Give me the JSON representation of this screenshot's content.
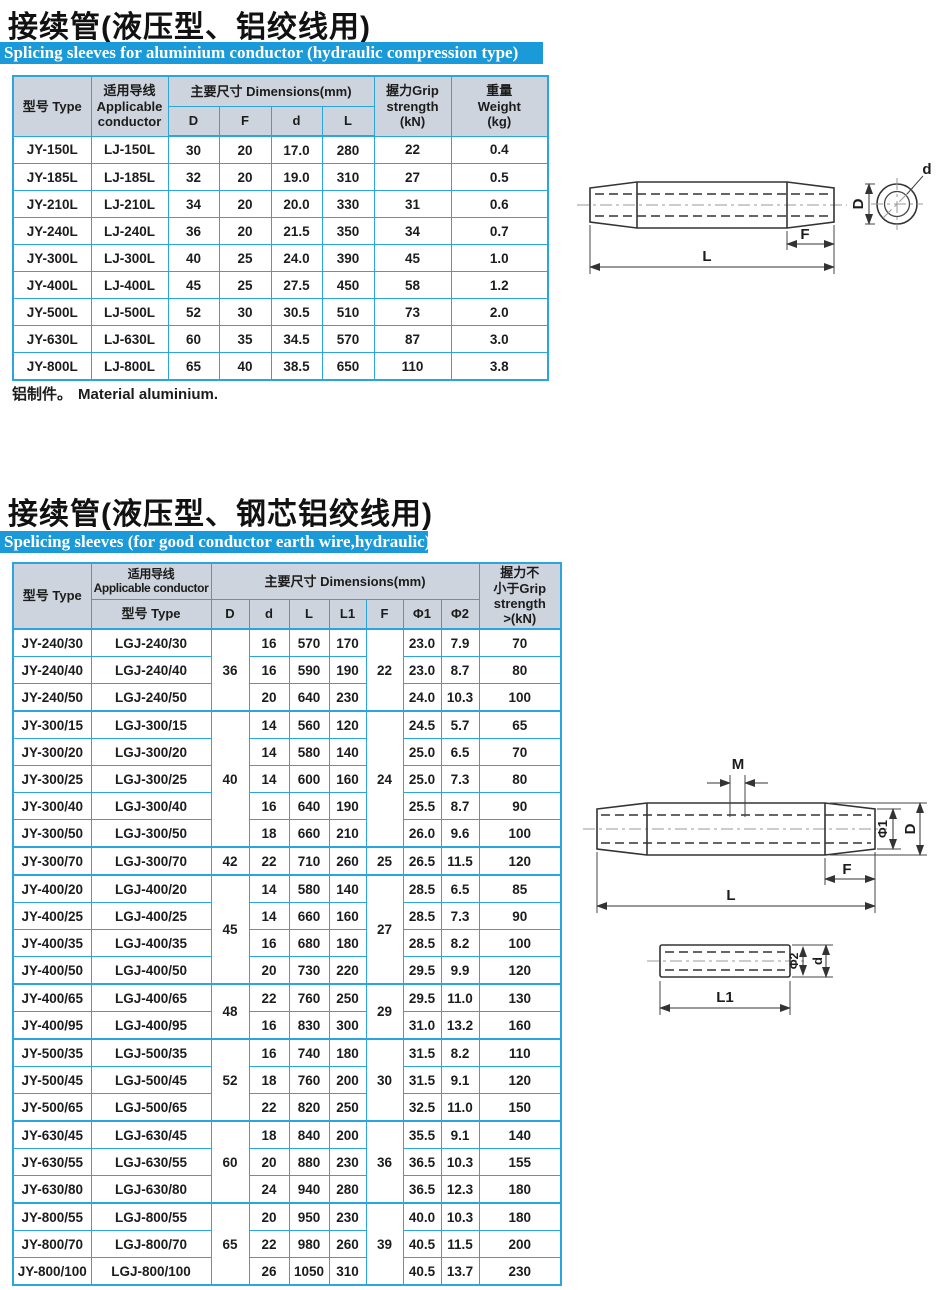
{
  "colors": {
    "banner_bg": "#1b9ad9",
    "table_border": "#2ba4e2",
    "header_bg": "#cdd4dd"
  },
  "section1": {
    "title": "接续管(液压型、铝绞线用)",
    "banner": "Splicing sleeves for aluminium conductor (hydraulic compression type)",
    "note_cn": "铝制件。",
    "note_en": "Material aluminium.",
    "table": {
      "header": {
        "type": "型号 Type",
        "conductor": "适用导线\nApplicable\nconductor",
        "dims": "主要尺寸 Dimensions(mm)",
        "sub": [
          "D",
          "F",
          "d",
          "L"
        ],
        "grip": "握力Grip\nstrength\n(kN)",
        "weight": "重量\nWeight\n(kg)"
      },
      "rows": [
        [
          "JY-150L",
          "LJ-150L",
          "30",
          "20",
          "17.0",
          "280",
          "22",
          "0.4"
        ],
        [
          "JY-185L",
          "LJ-185L",
          "32",
          "20",
          "19.0",
          "310",
          "27",
          "0.5"
        ],
        [
          "JY-210L",
          "LJ-210L",
          "34",
          "20",
          "20.0",
          "330",
          "31",
          "0.6"
        ],
        [
          "JY-240L",
          "LJ-240L",
          "36",
          "20",
          "21.5",
          "350",
          "34",
          "0.7"
        ],
        [
          "JY-300L",
          "LJ-300L",
          "40",
          "25",
          "24.0",
          "390",
          "45",
          "1.0"
        ],
        [
          "JY-400L",
          "LJ-400L",
          "45",
          "25",
          "27.5",
          "450",
          "58",
          "1.2"
        ],
        [
          "JY-500L",
          "LJ-500L",
          "52",
          "30",
          "30.5",
          "510",
          "73",
          "2.0"
        ],
        [
          "JY-630L",
          "LJ-630L",
          "60",
          "35",
          "34.5",
          "570",
          "87",
          "3.0"
        ],
        [
          "JY-800L",
          "LJ-800L",
          "65",
          "40",
          "38.5",
          "650",
          "110",
          "3.8"
        ]
      ]
    },
    "diagram": {
      "L": "L",
      "F": "F",
      "D": "D",
      "d": "d"
    }
  },
  "section2": {
    "title": "接续管(液压型、钢芯铝绞线用)",
    "banner": "Spelicing sleeves (for good conductor earth wire,hydraulic)",
    "table": {
      "header": {
        "type": "型号 Type",
        "conductor": "适用导线\nApplicable conductor",
        "conductor_sub": "型号 Type",
        "dims": "主要尺寸 Dimensions(mm)",
        "sub": [
          "D",
          "d",
          "L",
          "L1",
          "F",
          "Φ1",
          "Φ2"
        ],
        "grip": "握力不\n小于Grip\nstrength\n>(kN)"
      },
      "rows": [
        {
          "type": "JY-240/30",
          "cond": "LGJ-240/30",
          "D": "36",
          "D_span": 3,
          "d": "16",
          "L": "570",
          "L1": "170",
          "F": "22",
          "F_span": 3,
          "phi1": "23.0",
          "phi2": "7.9",
          "grip": "70"
        },
        {
          "type": "JY-240/40",
          "cond": "LGJ-240/40",
          "d": "16",
          "L": "590",
          "L1": "190",
          "phi1": "23.0",
          "phi2": "8.7",
          "grip": "80"
        },
        {
          "type": "JY-240/50",
          "cond": "LGJ-240/50",
          "d": "20",
          "L": "640",
          "L1": "230",
          "phi1": "24.0",
          "phi2": "10.3",
          "grip": "100"
        },
        {
          "type": "JY-300/15",
          "cond": "LGJ-300/15",
          "D": "40",
          "D_span": 5,
          "d": "14",
          "L": "560",
          "L1": "120",
          "F": "24",
          "F_span": 5,
          "phi1": "24.5",
          "phi2": "5.7",
          "grip": "65"
        },
        {
          "type": "JY-300/20",
          "cond": "LGJ-300/20",
          "d": "14",
          "L": "580",
          "L1": "140",
          "phi1": "25.0",
          "phi2": "6.5",
          "grip": "70"
        },
        {
          "type": "JY-300/25",
          "cond": "LGJ-300/25",
          "d": "14",
          "L": "600",
          "L1": "160",
          "phi1": "25.0",
          "phi2": "7.3",
          "grip": "80"
        },
        {
          "type": "JY-300/40",
          "cond": "LGJ-300/40",
          "d": "16",
          "L": "640",
          "L1": "190",
          "phi1": "25.5",
          "phi2": "8.7",
          "grip": "90"
        },
        {
          "type": "JY-300/50",
          "cond": "LGJ-300/50",
          "d": "18",
          "L": "660",
          "L1": "210",
          "phi1": "26.0",
          "phi2": "9.6",
          "grip": "100"
        },
        {
          "type": "JY-300/70",
          "cond": "LGJ-300/70",
          "D": "42",
          "D_span": 1,
          "d": "22",
          "L": "710",
          "L1": "260",
          "F": "25",
          "F_span": 1,
          "phi1": "26.5",
          "phi2": "11.5",
          "grip": "120"
        },
        {
          "type": "JY-400/20",
          "cond": "LGJ-400/20",
          "D": "45",
          "D_span": 4,
          "d": "14",
          "L": "580",
          "L1": "140",
          "F": "27",
          "F_span": 4,
          "phi1": "28.5",
          "phi2": "6.5",
          "grip": "85"
        },
        {
          "type": "JY-400/25",
          "cond": "LGJ-400/25",
          "d": "14",
          "L": "660",
          "L1": "160",
          "phi1": "28.5",
          "phi2": "7.3",
          "grip": "90"
        },
        {
          "type": "JY-400/35",
          "cond": "LGJ-400/35",
          "d": "16",
          "L": "680",
          "L1": "180",
          "phi1": "28.5",
          "phi2": "8.2",
          "grip": "100"
        },
        {
          "type": "JY-400/50",
          "cond": "LGJ-400/50",
          "d": "20",
          "L": "730",
          "L1": "220",
          "phi1": "29.5",
          "phi2": "9.9",
          "grip": "120"
        },
        {
          "type": "JY-400/65",
          "cond": "LGJ-400/65",
          "D": "48",
          "D_span": 2,
          "d": "22",
          "L": "760",
          "L1": "250",
          "F": "29",
          "F_span": 2,
          "phi1": "29.5",
          "phi2": "11.0",
          "grip": "130"
        },
        {
          "type": "JY-400/95",
          "cond": "LGJ-400/95",
          "d": "16",
          "L": "830",
          "L1": "300",
          "phi1": "31.0",
          "phi2": "13.2",
          "grip": "160"
        },
        {
          "type": "JY-500/35",
          "cond": "LGJ-500/35",
          "D": "52",
          "D_span": 3,
          "d": "16",
          "L": "740",
          "L1": "180",
          "F": "30",
          "F_span": 3,
          "phi1": "31.5",
          "phi2": "8.2",
          "grip": "110"
        },
        {
          "type": "JY-500/45",
          "cond": "LGJ-500/45",
          "d": "18",
          "L": "760",
          "L1": "200",
          "phi1": "31.5",
          "phi2": "9.1",
          "grip": "120"
        },
        {
          "type": "JY-500/65",
          "cond": "LGJ-500/65",
          "d": "22",
          "L": "820",
          "L1": "250",
          "phi1": "32.5",
          "phi2": "11.0",
          "grip": "150"
        },
        {
          "type": "JY-630/45",
          "cond": "LGJ-630/45",
          "D": "60",
          "D_span": 3,
          "d": "18",
          "L": "840",
          "L1": "200",
          "F": "36",
          "F_span": 3,
          "phi1": "35.5",
          "phi2": "9.1",
          "grip": "140"
        },
        {
          "type": "JY-630/55",
          "cond": "LGJ-630/55",
          "d": "20",
          "L": "880",
          "L1": "230",
          "phi1": "36.5",
          "phi2": "10.3",
          "grip": "155"
        },
        {
          "type": "JY-630/80",
          "cond": "LGJ-630/80",
          "d": "24",
          "L": "940",
          "L1": "280",
          "phi1": "36.5",
          "phi2": "12.3",
          "grip": "180"
        },
        {
          "type": "JY-800/55",
          "cond": "LGJ-800/55",
          "D": "65",
          "D_span": 3,
          "d": "20",
          "L": "950",
          "L1": "230",
          "F": "39",
          "F_span": 3,
          "phi1": "40.0",
          "phi2": "10.3",
          "grip": "180"
        },
        {
          "type": "JY-800/70",
          "cond": "LGJ-800/70",
          "d": "22",
          "L": "980",
          "L1": "260",
          "phi1": "40.5",
          "phi2": "11.5",
          "grip": "200"
        },
        {
          "type": "JY-800/100",
          "cond": "LGJ-800/100",
          "d": "26",
          "L": "1050",
          "L1": "310",
          "phi1": "40.5",
          "phi2": "13.7",
          "grip": "230"
        }
      ]
    },
    "diagram": {
      "M": "M",
      "phi1": "Φ1",
      "D": "D",
      "F": "F",
      "L": "L",
      "phi2": "Φ2",
      "d": "d",
      "L1": "L1"
    }
  }
}
